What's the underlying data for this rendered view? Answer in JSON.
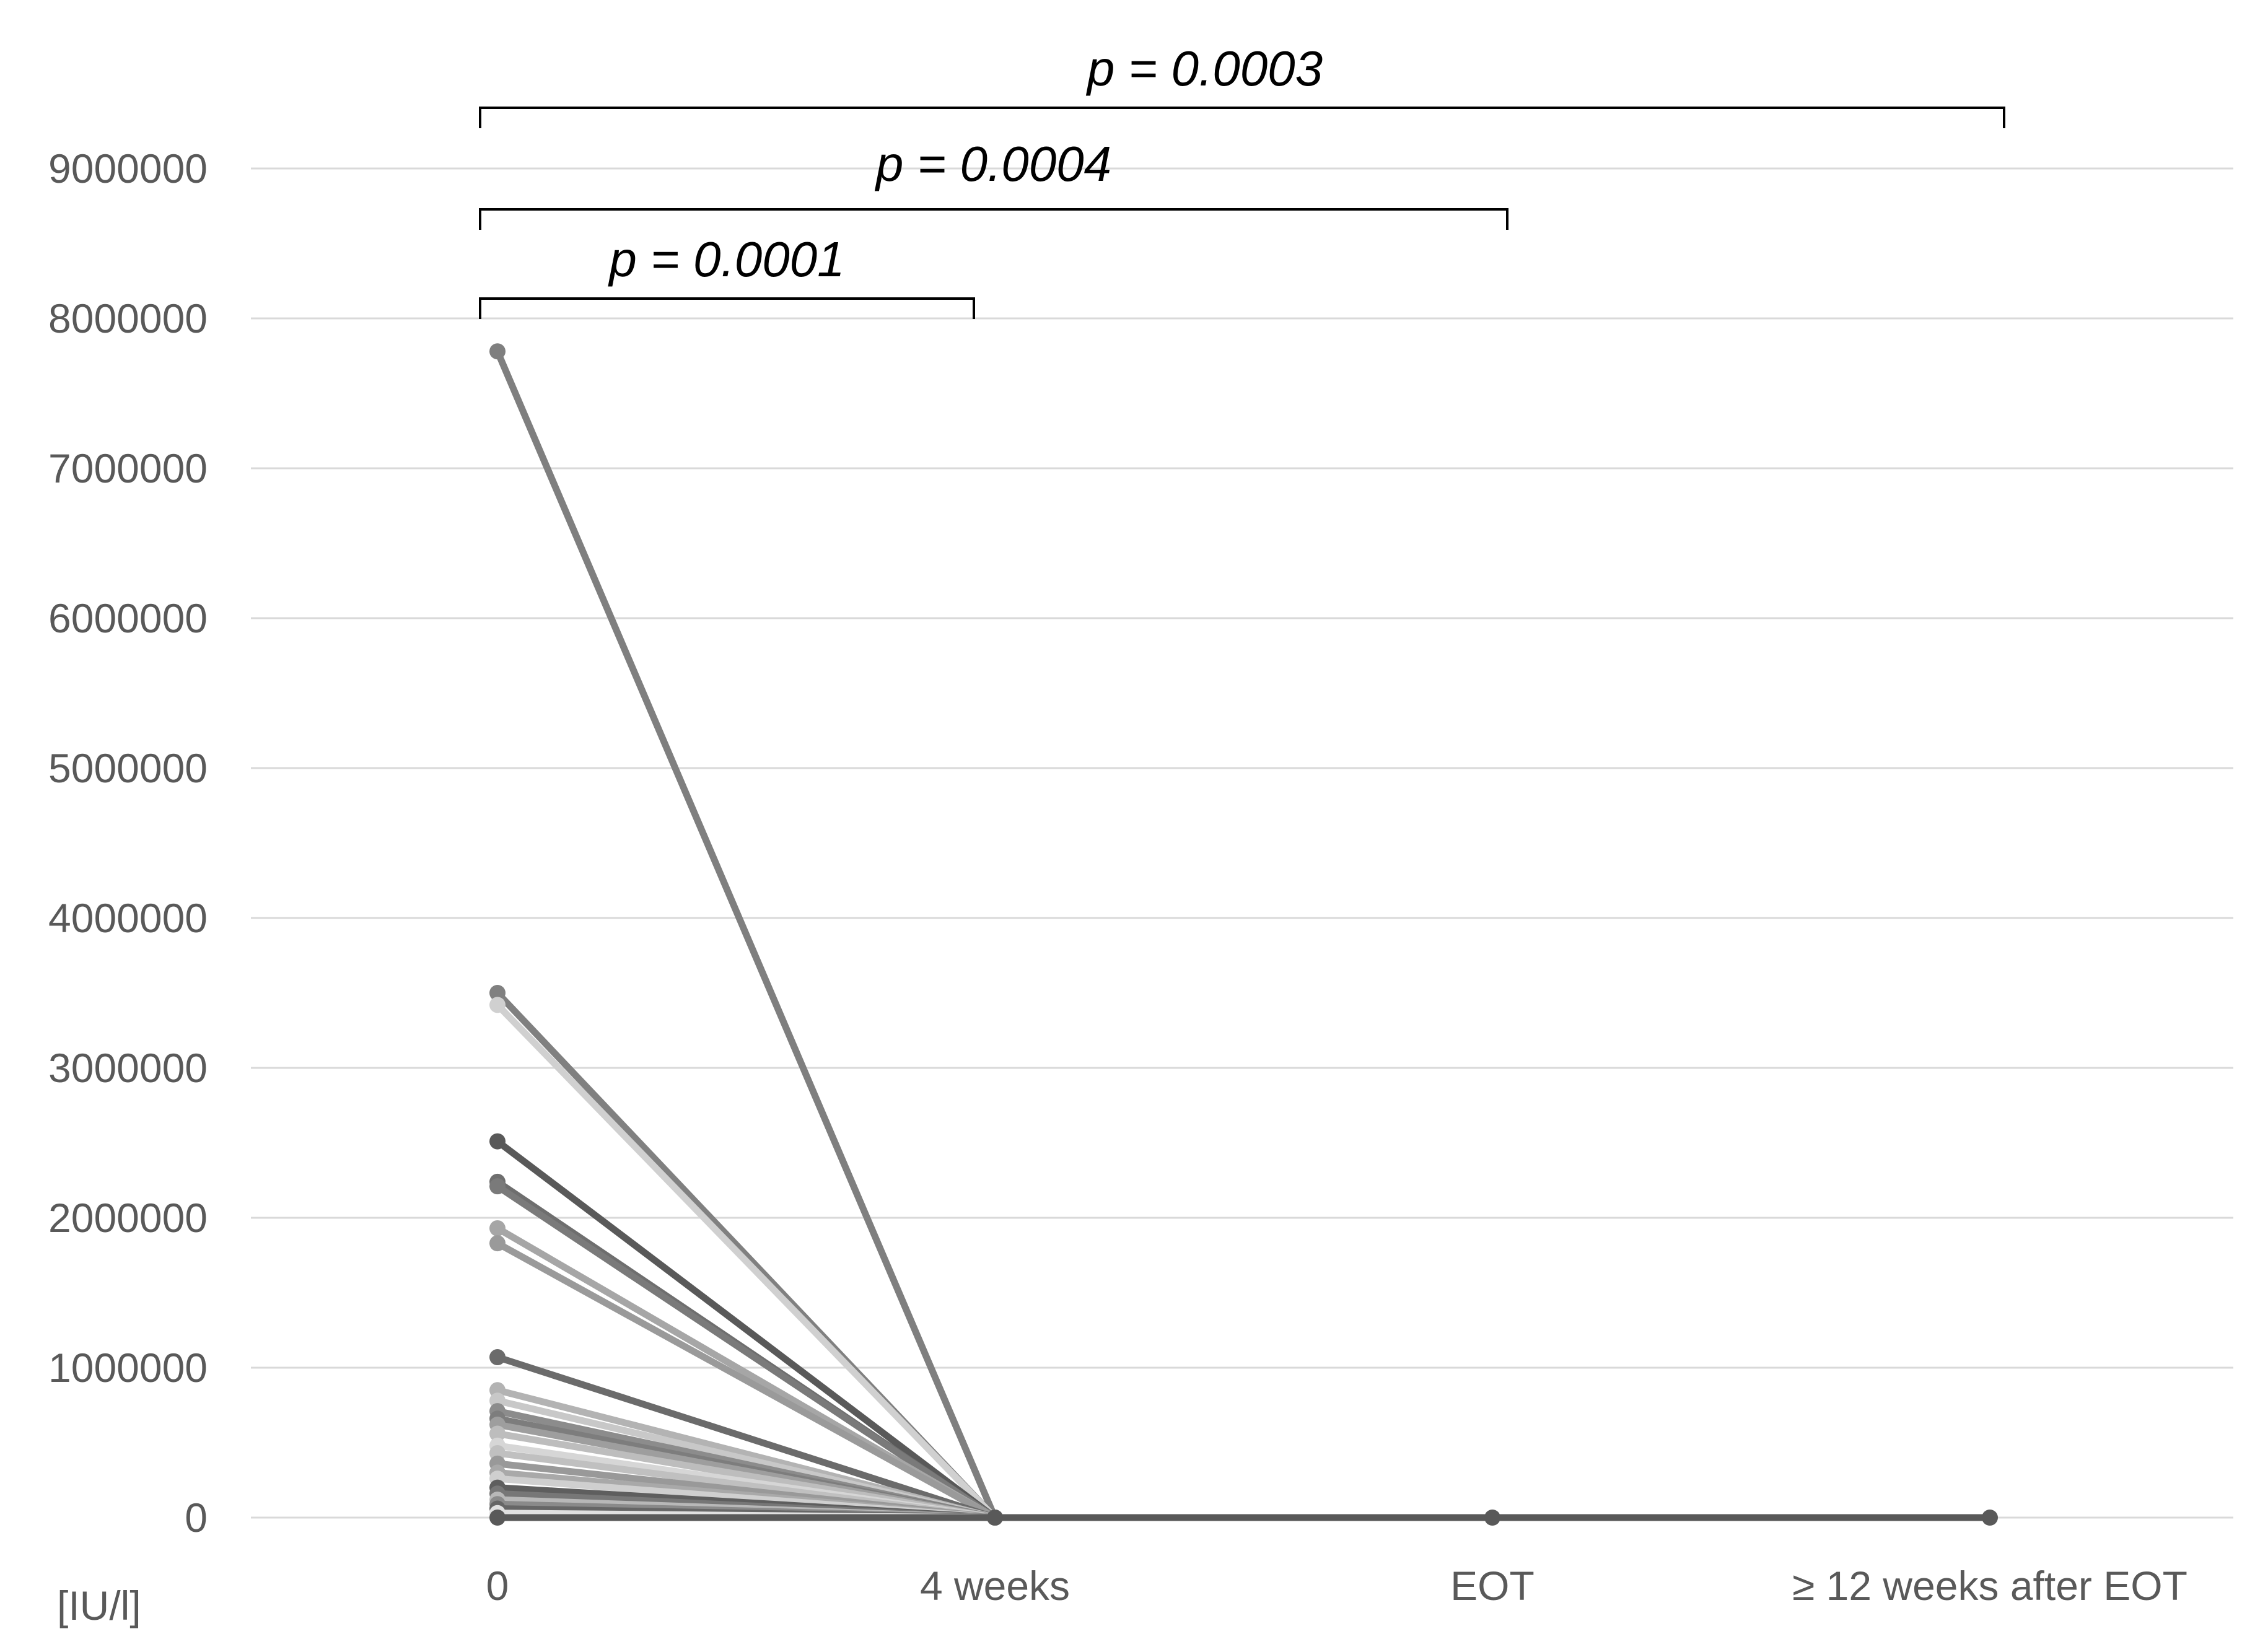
{
  "chart_data": {
    "type": "line",
    "unit_label": "[IU/l]",
    "categories": [
      "0",
      "4 weeks",
      "EOT",
      "≥ 12 weeks after EOT"
    ],
    "ylim": [
      0,
      9000000
    ],
    "yticks": [
      "0",
      "1000000",
      "2000000",
      "3000000",
      "4000000",
      "5000000",
      "6000000",
      "7000000",
      "8000000",
      "9000000"
    ],
    "ytick_values": [
      0,
      1000000,
      2000000,
      3000000,
      4000000,
      5000000,
      6000000,
      7000000,
      8000000,
      9000000
    ],
    "grid": true,
    "colors": {
      "grid": "#d9d9d9",
      "tick_text": "#595959",
      "bracket": "#000000",
      "flat_line": "#595959"
    },
    "comparisons": [
      {
        "from": "0",
        "to": "4 weeks",
        "label": "p = 0.0001"
      },
      {
        "from": "0",
        "to": "EOT",
        "label": "p = 0.0004"
      },
      {
        "from": "0",
        "to": "≥ 12 weeks after EOT",
        "label": "p = 0.0003"
      }
    ],
    "series": [
      {
        "values": [
          7780000,
          0,
          null,
          null
        ],
        "color": "#7f7f7f"
      },
      {
        "values": [
          3500000,
          0,
          null,
          null
        ],
        "color": "#808080"
      },
      {
        "values": [
          3420000,
          0,
          null,
          null
        ],
        "color": "#d0d0d0"
      },
      {
        "values": [
          2510000,
          0,
          null,
          null
        ],
        "color": "#595959"
      },
      {
        "values": [
          2240000,
          0,
          null,
          null
        ],
        "color": "#6e6e6e"
      },
      {
        "values": [
          2210000,
          0,
          null,
          null
        ],
        "color": "#7a7a7a"
      },
      {
        "values": [
          1930000,
          0,
          null,
          null
        ],
        "color": "#a6a6a6"
      },
      {
        "values": [
          1830000,
          0,
          null,
          null
        ],
        "color": "#9a9a9a"
      },
      {
        "values": [
          1070000,
          0,
          null,
          null
        ],
        "color": "#6b6b6b"
      },
      {
        "values": [
          850000,
          0,
          null,
          null
        ],
        "color": "#b3b3b3"
      },
      {
        "values": [
          780000,
          0,
          null,
          null
        ],
        "color": "#c8c8c8"
      },
      {
        "values": [
          710000,
          0,
          null,
          null
        ],
        "color": "#8c8c8c"
      },
      {
        "values": [
          660000,
          0,
          null,
          null
        ],
        "color": "#7d7d7d"
      },
      {
        "values": [
          620000,
          0,
          null,
          null
        ],
        "color": "#9e9e9e"
      },
      {
        "values": [
          560000,
          0,
          null,
          null
        ],
        "color": "#bdbdbd"
      },
      {
        "values": [
          480000,
          0,
          null,
          null
        ],
        "color": "#d6d6d6"
      },
      {
        "values": [
          430000,
          0,
          null,
          null
        ],
        "color": "#c0c0c0"
      },
      {
        "values": [
          360000,
          0,
          null,
          null
        ],
        "color": "#999999"
      },
      {
        "values": [
          300000,
          0,
          null,
          null
        ],
        "color": "#a9a9a9"
      },
      {
        "values": [
          260000,
          0,
          null,
          null
        ],
        "color": "#cfcfcf"
      },
      {
        "values": [
          200000,
          0,
          null,
          null
        ],
        "color": "#5e5e5e"
      },
      {
        "values": [
          160000,
          0,
          null,
          null
        ],
        "color": "#777777"
      },
      {
        "values": [
          120000,
          0,
          null,
          null
        ],
        "color": "#b8b8b8"
      },
      {
        "values": [
          90000,
          0,
          null,
          null
        ],
        "color": "#8a8a8a"
      },
      {
        "values": [
          60000,
          0,
          null,
          null
        ],
        "color": "#666666"
      },
      {
        "values": [
          30000,
          0,
          null,
          null
        ],
        "color": "#e0e0e0"
      },
      {
        "values": [
          0,
          0,
          0,
          0
        ],
        "color": "#595959"
      }
    ]
  }
}
